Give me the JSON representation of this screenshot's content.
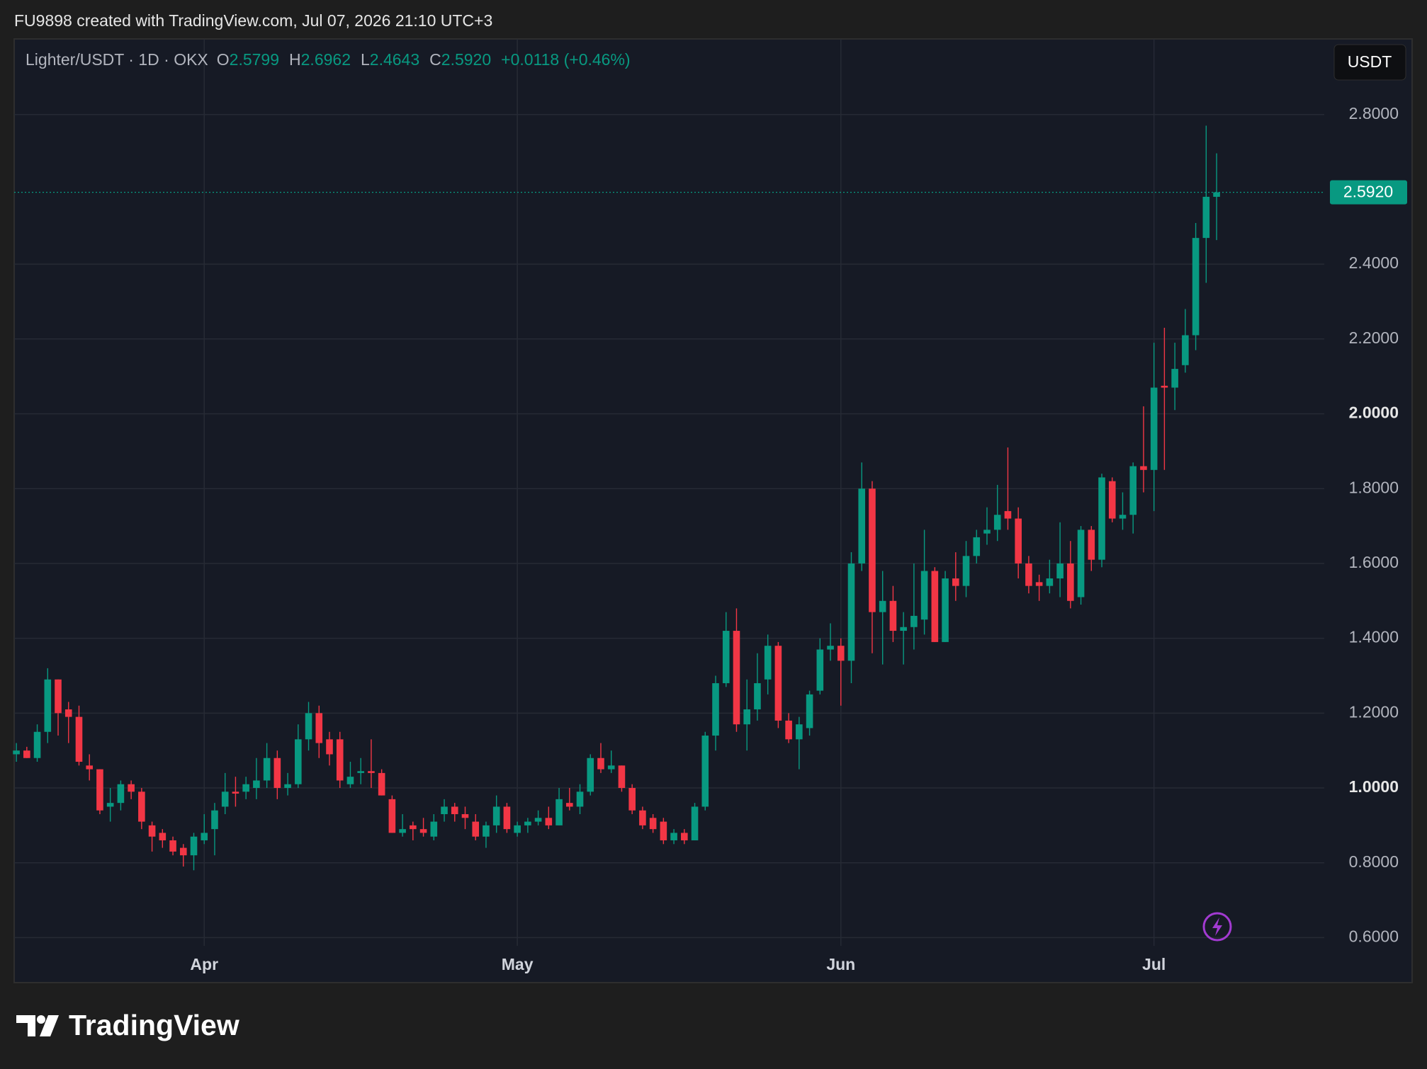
{
  "header": {
    "credit": "FU9898 created with TradingView.com, Jul 07, 2026 21:10 UTC+3"
  },
  "chart_data": {
    "type": "candlestick",
    "symbol": "Lighter/USDT · 1D · OKX",
    "ohlc_legend": [
      {
        "key": "O",
        "value": "2.5799"
      },
      {
        "key": "H",
        "value": "2.6962"
      },
      {
        "key": "L",
        "value": "2.4643"
      },
      {
        "key": "C",
        "value": "2.5920"
      }
    ],
    "change": "+0.0118 (+0.46%)",
    "currency": "USDT",
    "last_price_label": "2.5920",
    "up_color": "#089981",
    "down_color": "#f23645",
    "grid": true,
    "categories": [
      null,
      null,
      null,
      null,
      null,
      null,
      null,
      null,
      null,
      null,
      null,
      null,
      null,
      null,
      null,
      null,
      null,
      null,
      "Apr",
      null,
      null,
      null,
      null,
      null,
      null,
      null,
      null,
      null,
      null,
      null,
      null,
      null,
      null,
      null,
      null,
      null,
      null,
      null,
      null,
      null,
      null,
      null,
      null,
      null,
      null,
      null,
      null,
      null,
      "May",
      null,
      null,
      null,
      null,
      null,
      null,
      null,
      null,
      null,
      null,
      null,
      null,
      null,
      null,
      null,
      null,
      null,
      null,
      null,
      null,
      null,
      null,
      null,
      null,
      null,
      null,
      null,
      null,
      null,
      null,
      "Jun",
      null,
      null,
      null,
      null,
      null,
      null,
      null,
      null,
      null,
      null,
      null,
      null,
      null,
      null,
      null,
      null,
      null,
      null,
      null,
      null,
      null,
      null,
      null,
      null,
      null,
      null,
      null,
      null,
      null,
      "Jul",
      null,
      null,
      null,
      null,
      null,
      null
    ],
    "open": [
      1.09,
      1.1,
      1.08,
      1.15,
      1.29,
      1.21,
      1.19,
      1.06,
      1.05,
      0.95,
      0.96,
      1.01,
      0.99,
      0.9,
      0.88,
      0.86,
      0.84,
      0.82,
      0.86,
      0.89,
      0.95,
      0.99,
      0.99,
      1.0,
      1.02,
      1.08,
      1.0,
      1.01,
      1.13,
      1.2,
      1.13,
      1.13,
      1.01,
      1.04,
      1.045,
      1.04,
      0.97,
      0.88,
      0.9,
      0.89,
      0.87,
      0.93,
      0.95,
      0.93,
      0.91,
      0.87,
      0.9,
      0.95,
      0.88,
      0.9,
      0.91,
      0.92,
      0.9,
      0.96,
      0.95,
      0.99,
      1.08,
      1.05,
      1.06,
      1.0,
      0.94,
      0.92,
      0.91,
      0.86,
      0.88,
      0.86,
      0.95,
      1.14,
      1.28,
      1.42,
      1.17,
      1.21,
      1.29,
      1.38,
      1.18,
      1.13,
      1.16,
      1.26,
      1.37,
      1.38,
      1.34,
      1.6,
      1.8,
      1.47,
      1.5,
      1.42,
      1.43,
      1.45,
      1.58,
      1.39,
      1.56,
      1.54,
      1.62,
      1.68,
      1.69,
      1.74,
      1.72,
      1.6,
      1.55,
      1.54,
      1.56,
      1.6,
      1.51,
      1.69,
      1.61,
      1.82,
      1.72,
      1.73,
      1.86,
      1.85,
      2.075,
      2.07,
      2.13,
      2.21,
      2.47,
      2.5799
    ],
    "high": [
      1.12,
      1.11,
      1.17,
      1.32,
      1.29,
      1.23,
      1.22,
      1.09,
      1.05,
      1.0,
      1.02,
      1.02,
      1.0,
      0.91,
      0.89,
      0.87,
      0.85,
      0.88,
      0.93,
      0.96,
      1.04,
      1.03,
      1.03,
      1.08,
      1.12,
      1.1,
      1.04,
      1.17,
      1.23,
      1.22,
      1.15,
      1.15,
      1.07,
      1.08,
      1.13,
      1.05,
      0.98,
      0.93,
      0.91,
      0.92,
      0.93,
      0.97,
      0.96,
      0.95,
      0.93,
      0.91,
      0.98,
      0.96,
      0.91,
      0.92,
      0.94,
      0.95,
      1.0,
      1.0,
      1.01,
      1.09,
      1.12,
      1.1,
      1.06,
      1.01,
      0.95,
      0.93,
      0.92,
      0.89,
      0.89,
      0.96,
      1.15,
      1.3,
      1.47,
      1.48,
      1.29,
      1.36,
      1.41,
      1.39,
      1.2,
      1.19,
      1.26,
      1.4,
      1.44,
      1.4,
      1.63,
      1.87,
      1.82,
      1.58,
      1.54,
      1.47,
      1.6,
      1.69,
      1.59,
      1.58,
      1.63,
      1.66,
      1.69,
      1.75,
      1.81,
      1.91,
      1.75,
      1.62,
      1.57,
      1.61,
      1.71,
      1.66,
      1.7,
      1.7,
      1.84,
      1.83,
      1.79,
      1.87,
      2.02,
      2.19,
      2.23,
      2.19,
      2.28,
      2.51,
      2.77,
      2.6962
    ],
    "low": [
      1.07,
      1.08,
      1.07,
      1.12,
      1.14,
      1.12,
      1.06,
      1.02,
      0.93,
      0.91,
      0.94,
      0.97,
      0.89,
      0.83,
      0.84,
      0.82,
      0.79,
      0.78,
      0.85,
      0.82,
      0.93,
      0.95,
      0.97,
      0.97,
      1.0,
      0.97,
      0.98,
      1.0,
      1.1,
      1.08,
      1.06,
      1.0,
      1.0,
      1.01,
      1.0,
      0.98,
      0.88,
      0.87,
      0.86,
      0.87,
      0.86,
      0.91,
      0.91,
      0.89,
      0.86,
      0.84,
      0.88,
      0.88,
      0.87,
      0.88,
      0.9,
      0.89,
      0.9,
      0.94,
      0.93,
      0.98,
      1.04,
      1.04,
      0.99,
      0.93,
      0.89,
      0.88,
      0.85,
      0.85,
      0.85,
      0.86,
      0.94,
      1.1,
      1.27,
      1.15,
      1.1,
      1.18,
      1.25,
      1.16,
      1.12,
      1.05,
      1.14,
      1.25,
      1.34,
      1.22,
      1.28,
      1.58,
      1.36,
      1.33,
      1.39,
      1.33,
      1.37,
      1.41,
      1.39,
      1.39,
      1.5,
      1.51,
      1.6,
      1.65,
      1.66,
      1.69,
      1.56,
      1.52,
      1.5,
      1.52,
      1.51,
      1.48,
      1.49,
      1.58,
      1.59,
      1.71,
      1.69,
      1.68,
      1.79,
      1.74,
      1.85,
      2.01,
      2.11,
      2.17,
      2.35,
      2.4643
    ],
    "close": [
      1.1,
      1.08,
      1.15,
      1.29,
      1.2,
      1.19,
      1.07,
      1.05,
      0.94,
      0.96,
      1.01,
      0.99,
      0.91,
      0.87,
      0.86,
      0.83,
      0.82,
      0.87,
      0.88,
      0.94,
      0.99,
      0.985,
      1.01,
      1.02,
      1.08,
      1.0,
      1.01,
      1.13,
      1.2,
      1.12,
      1.09,
      1.02,
      1.03,
      1.045,
      1.04,
      0.98,
      0.88,
      0.89,
      0.89,
      0.88,
      0.91,
      0.95,
      0.93,
      0.92,
      0.87,
      0.9,
      0.95,
      0.89,
      0.9,
      0.91,
      0.92,
      0.9,
      0.97,
      0.95,
      0.99,
      1.08,
      1.05,
      1.06,
      1.0,
      0.94,
      0.9,
      0.89,
      0.86,
      0.88,
      0.86,
      0.95,
      1.14,
      1.28,
      1.42,
      1.17,
      1.21,
      1.28,
      1.38,
      1.18,
      1.13,
      1.17,
      1.25,
      1.37,
      1.38,
      1.34,
      1.6,
      1.8,
      1.47,
      1.5,
      1.42,
      1.43,
      1.46,
      1.58,
      1.39,
      1.56,
      1.54,
      1.62,
      1.67,
      1.69,
      1.73,
      1.72,
      1.6,
      1.54,
      1.54,
      1.56,
      1.6,
      1.5,
      1.69,
      1.61,
      1.83,
      1.72,
      1.73,
      1.86,
      1.85,
      2.07,
      2.07,
      2.12,
      2.21,
      2.47,
      2.58,
      2.592
    ],
    "ylim": [
      0.58,
      3.0
    ],
    "yticks": [
      {
        "value": 0.6,
        "label": "0.6000"
      },
      {
        "value": 0.8,
        "label": "0.8000"
      },
      {
        "value": 1,
        "label": "1.0000"
      },
      {
        "value": 1.2,
        "label": "1.2000"
      },
      {
        "value": 1.4,
        "label": "1.4000"
      },
      {
        "value": 1.6,
        "label": "1.6000"
      },
      {
        "value": 1.8,
        "label": "1.8000"
      },
      {
        "value": 2,
        "label": "2.0000"
      },
      {
        "value": 2.2,
        "label": "2.2000"
      },
      {
        "value": 2.4,
        "label": "2.4000"
      },
      {
        "value": 2.8,
        "label": "2.8000"
      }
    ]
  },
  "footer": {
    "brand": "TradingView"
  }
}
